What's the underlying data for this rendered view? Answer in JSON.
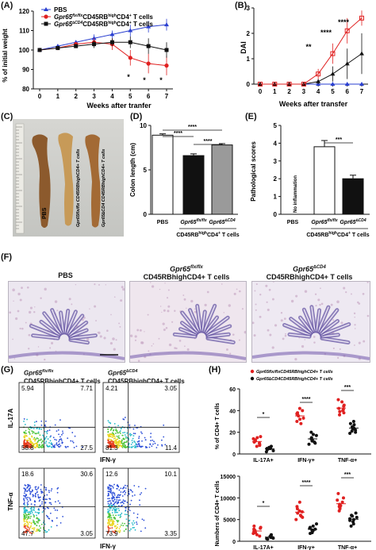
{
  "panels": {
    "A": "(A)",
    "B": "(B)",
    "C": "(C)",
    "D": "(D)",
    "E": "(E)",
    "F": "(F)",
    "G": "(G)",
    "H": "(H)"
  },
  "panelA": {
    "ylabel": "% of initial weight",
    "xlabel": "Weeks after tranfer",
    "legend": [
      "PBS",
      "CD45RB",
      "CD4",
      "T cells"
    ],
    "legend_gene_flx": "Gpr65",
    "legend_sup_flx": "flx/flx",
    "legend_gene_cd4": "Gpr65",
    "legend_sup_cd4": "∆CD4",
    "sup_high": "high",
    "sup_plus": "+",
    "stars": [
      "*",
      "*",
      "*"
    ]
  },
  "panelB": {
    "ylabel": "DAI",
    "xlabel": "Weeks after transfer",
    "stars": [
      "**",
      "****",
      "****"
    ]
  },
  "panelC": {
    "pbs": "PBS",
    "tube2": "Gpr65flx/flx CD45RBhighCD4+ T cells",
    "tube3": "Gpr65∆CD4 CD45RBhighCD4+ T cells"
  },
  "panelD": {
    "ylabel": "Colon length (cm)",
    "x1": "PBS",
    "x2": "Gpr65",
    "x2sup": "flx/flx",
    "x3": "Gpr65",
    "x3sup": "∆CD4",
    "group": "CD45RB",
    "group_sup": "high",
    "group2": "CD4",
    "group2_sup": "+",
    "group3": " T cells",
    "stars": [
      "****",
      "****",
      "****"
    ]
  },
  "panelE": {
    "ylabel": "Pathological scores",
    "x1": "PBS",
    "x2": "Gpr65",
    "x2sup": "flx/flx",
    "x3": "Gpr65",
    "x3sup": "∆CD4",
    "group": "CD45RB",
    "group_sup": "high",
    "group2": "CD4",
    "group2_sup": "+",
    "group3": " T cells",
    "note": "No inflammation",
    "stars": [
      "***"
    ]
  },
  "panelF": {
    "t1": "PBS",
    "t2a": "Gpr65",
    "t2a_sup": "flx/flx",
    "t2b": "CD45RBhighCD4+ T cells",
    "t3a": "Gpr65",
    "t3a_sup": "∆CD4",
    "t3b": "CD45RBhighCD4+ T cells"
  },
  "panelG": {
    "h1": "Gpr65",
    "h1sup": "flx/flx",
    "h1b": "CD45RBhighCD4+ T cells",
    "h2": "Gpr65",
    "h2sup": "∆CD4",
    "h2b": "CD45RBhighCD4+ T cells",
    "y_top": "IL-17A",
    "y_bot": "TNF-α",
    "x": "IFN-γ",
    "q": [
      [
        "5.94",
        "7.71",
        "58.8",
        "27.5"
      ],
      [
        "4.21",
        "3.05",
        "81.3",
        "11.4"
      ],
      [
        "18.6",
        "30.6",
        "47.7",
        "3.05"
      ],
      [
        "12.6",
        "10.1",
        "73.9",
        "3.35"
      ]
    ]
  },
  "panelH": {
    "legend1": "Gpr65flx/flxCD45RBhighCD4+ T cells",
    "legend2": "Gpr65∆CD4CD45RBhighCD4+ T cells",
    "ylabel_top": "% of CD4+ T cells",
    "ylabel_bot": "Numbers of CD4+ T cells",
    "cats": [
      "IL-17A+",
      "IFN-γ+",
      "TNF-α+"
    ],
    "stars": [
      "*",
      "****",
      "***"
    ]
  },
  "chart_data": [
    {
      "type": "line",
      "x": [
        0,
        1,
        2,
        3,
        4,
        5,
        6,
        7
      ],
      "ylim": [
        80,
        120
      ],
      "xlabel": "Weeks after tranfer",
      "ylabel": "% of initial weight",
      "series": [
        {
          "name": "PBS",
          "values": [
            100,
            102,
            104,
            106,
            108,
            110,
            112,
            113
          ]
        },
        {
          "name": "Gpr65flx/flxCD45RBhighCD4+ T cells",
          "values": [
            100,
            101,
            103,
            104,
            103,
            96,
            93,
            92
          ]
        },
        {
          "name": "Gpr65∆CD4CD45RBhighCD4+ T cells",
          "values": [
            100,
            101,
            102,
            103,
            104,
            104,
            102,
            100
          ]
        }
      ]
    },
    {
      "type": "line",
      "x": [
        0,
        1,
        2,
        3,
        4,
        5,
        6,
        7
      ],
      "ylim": [
        0,
        3
      ],
      "xlabel": "Weeks after transfer",
      "ylabel": "DAI",
      "series": [
        {
          "values": [
            0,
            0,
            0,
            0,
            0,
            0,
            0,
            0
          ]
        },
        {
          "values": [
            0,
            0,
            0,
            0,
            0.4,
            1.2,
            2.1,
            2.6
          ]
        },
        {
          "values": [
            0,
            0,
            0,
            0,
            0.1,
            0.4,
            0.8,
            1.2
          ]
        }
      ]
    },
    {
      "type": "bar",
      "categories": [
        "PBS",
        "Gpr65flx/flx",
        "Gpr65∆CD4"
      ],
      "values": [
        8.9,
        6.6,
        7.8
      ],
      "ylim": [
        0,
        10
      ],
      "ylabel": "Colon length (cm)"
    },
    {
      "type": "bar",
      "categories": [
        "PBS",
        "Gpr65flx/flx",
        "Gpr65∆CD4"
      ],
      "values": [
        0,
        3.8,
        2.0
      ],
      "ylim": [
        0,
        5
      ],
      "ylabel": "Pathological scores"
    },
    {
      "type": "scatter",
      "categories": [
        "IL-17A+",
        "IFN-γ+",
        "TNF-α+"
      ],
      "ylim": [
        0,
        60
      ],
      "ylabel": "% of CD4+ T cells",
      "series": [
        {
          "name": "Gpr65flx/flxCD45RBhighCD4+ T cells",
          "values": [
            [
              15,
              12,
              10,
              8,
              14,
              11,
              9,
              13,
              7,
              16
            ],
            [
              38,
              32,
              35,
              42,
              30,
              36,
              40,
              33,
              37,
              28
            ],
            [
              45,
              40,
              38,
              50,
              42,
              36,
              44,
              48,
              41,
              39
            ]
          ]
        },
        {
          "name": "Gpr65∆CD4CD45RBhighCD4+ T cells",
          "values": [
            [
              5,
              4,
              6,
              3,
              7,
              5,
              4,
              6,
              2,
              5
            ],
            [
              15,
              12,
              20,
              10,
              18,
              14,
              11,
              17,
              9,
              13
            ],
            [
              25,
              22,
              28,
              20,
              30,
              24,
              21,
              27,
              19,
              23
            ]
          ]
        }
      ]
    },
    {
      "type": "scatter",
      "categories": [
        "IL-17A+",
        "IFN-γ+",
        "TNF-α+"
      ],
      "ylim": [
        0,
        15000
      ],
      "ylabel": "Numbers of CD4+ T cells",
      "series": [
        {
          "name": "Gpr65flx/flxCD45RBhighCD4+ T cells",
          "values": [
            [
              3000,
              2500,
              2000,
              1500,
              3500,
              2800,
              1800,
              2200,
              1200,
              3200
            ],
            [
              6000,
              7000,
              5500,
              8000,
              6500,
              7500,
              5000,
              6800,
              9000,
              5800
            ],
            [
              8000,
              9000,
              7500,
              10000,
              8500,
              7000,
              9500,
              8200,
              11000,
              7800
            ]
          ]
        },
        {
          "name": "Gpr65∆CD4CD45RBhighCD4+ T cells",
          "values": [
            [
              1000,
              800,
              1500,
              600,
              1200,
              900,
              700,
              1300,
              500,
              1100
            ],
            [
              2500,
              3000,
              2000,
              4000,
              3500,
              2800,
              2200,
              3200,
              1800,
              2600
            ],
            [
              5000,
              4500,
              6000,
              5500,
              4000,
              5200,
              4800,
              6500,
              3500,
              5800
            ]
          ]
        }
      ]
    }
  ]
}
